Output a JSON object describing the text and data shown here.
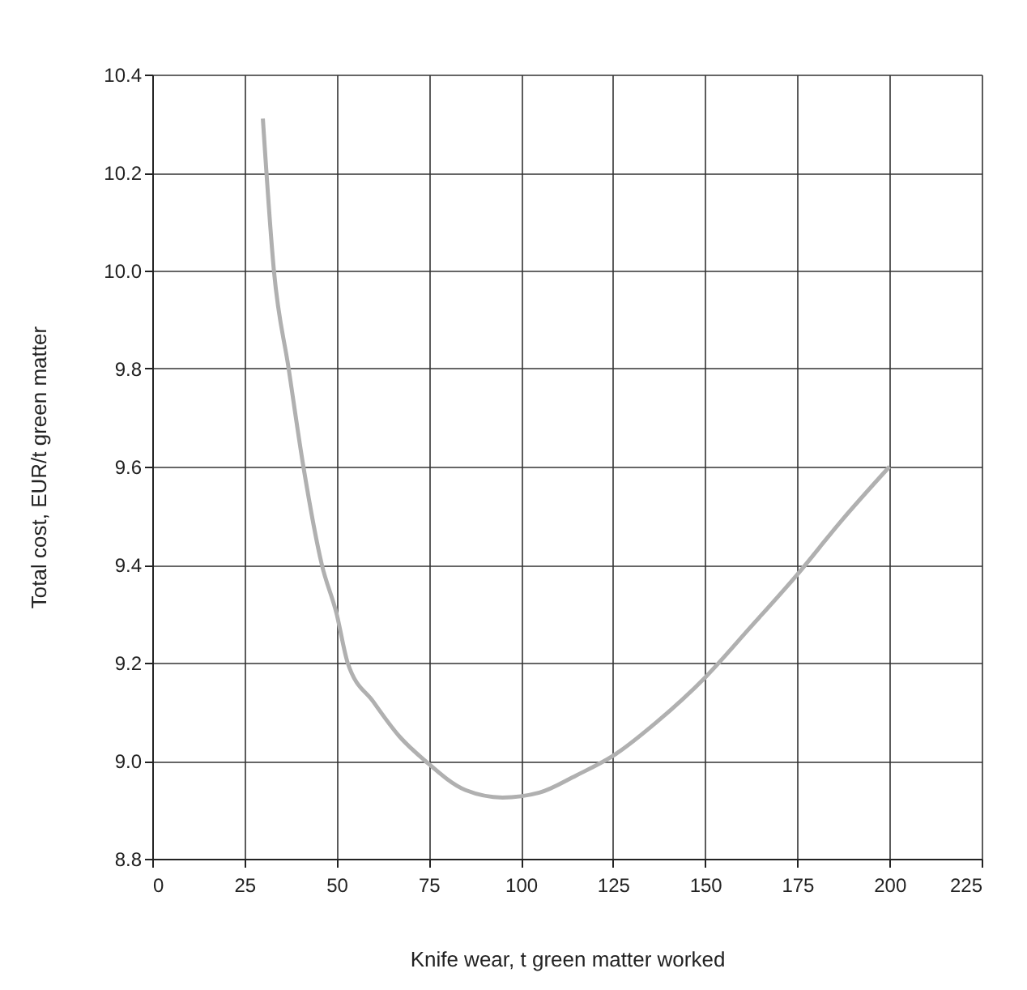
{
  "chart_data": {
    "type": "line",
    "xlabel": "Knife wear, t green matter worked",
    "ylabel": "Total cost, EUR/t green matter",
    "x": [
      30,
      33,
      37,
      41,
      46,
      50,
      53,
      60,
      67,
      74,
      85,
      95,
      105,
      115,
      125,
      137,
      150,
      162,
      175,
      187,
      200
    ],
    "series": [
      {
        "color": "#b0b0b0",
        "values": [
          10.31,
          10.0,
          9.8,
          9.6,
          9.4,
          9.3,
          9.2,
          9.12,
          9.05,
          9.0,
          8.94,
          8.925,
          8.935,
          8.97,
          9.01,
          9.08,
          9.17,
          9.27,
          9.38,
          9.49,
          9.6
        ]
      }
    ],
    "xlim": [
      0,
      225
    ],
    "xticks": [
      0,
      25,
      50,
      75,
      100,
      125,
      150,
      175,
      200,
      225
    ],
    "ylim": [
      8.8,
      10.4
    ],
    "yticks": [
      8.8,
      {
        "value": 9,
        "label": "9.0"
      },
      9.2,
      9.4,
      9.6,
      9.8,
      {
        "value": 10,
        "label": "10.0"
      },
      10.2,
      10.4
    ],
    "grid": true,
    "marker": "none",
    "line_style": "solid"
  }
}
